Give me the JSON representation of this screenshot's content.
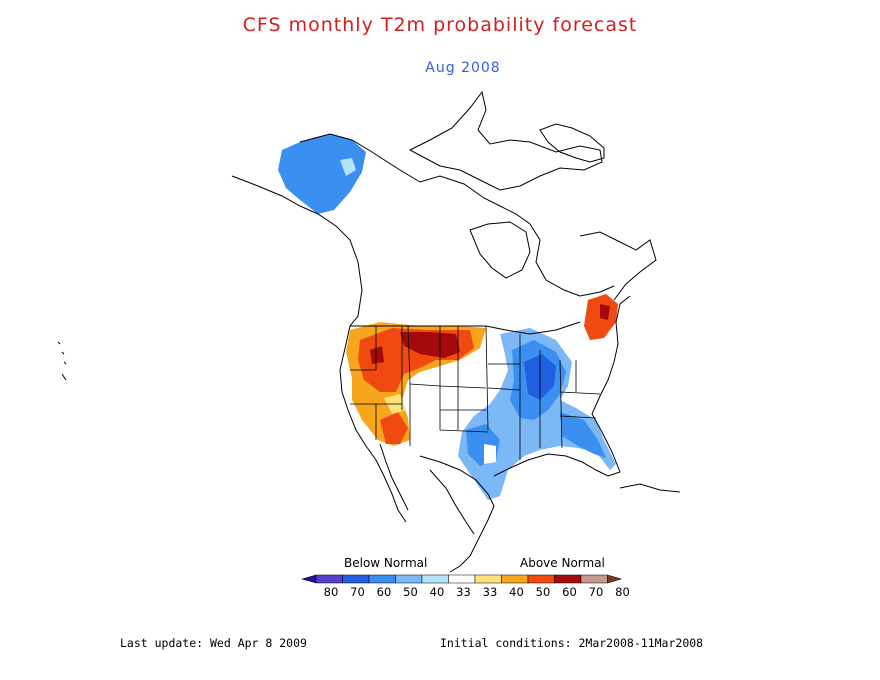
{
  "title": "CFS monthly T2m probability forecast",
  "subtitle": "Aug 2008",
  "legend": {
    "below_label": "Below Normal",
    "above_label": "Above Normal",
    "ticks": [
      "80",
      "70",
      "60",
      "50",
      "40",
      "33",
      "33",
      "40",
      "50",
      "60",
      "70",
      "80"
    ],
    "colors": [
      "#2b0f9a",
      "#5a3fcb",
      "#1f5fe0",
      "#3b8ff0",
      "#7cb8f5",
      "#b4e4fb",
      "#ffffff",
      "#ffe27a",
      "#f8a51e",
      "#f04a10",
      "#a50a0a",
      "#c49a8c",
      "#7a3b1f"
    ]
  },
  "footer": {
    "last_update": "Last update: Wed Apr 8 2009",
    "initial_conditions": "Initial conditions: 2Mar2008-11Mar2008"
  }
}
